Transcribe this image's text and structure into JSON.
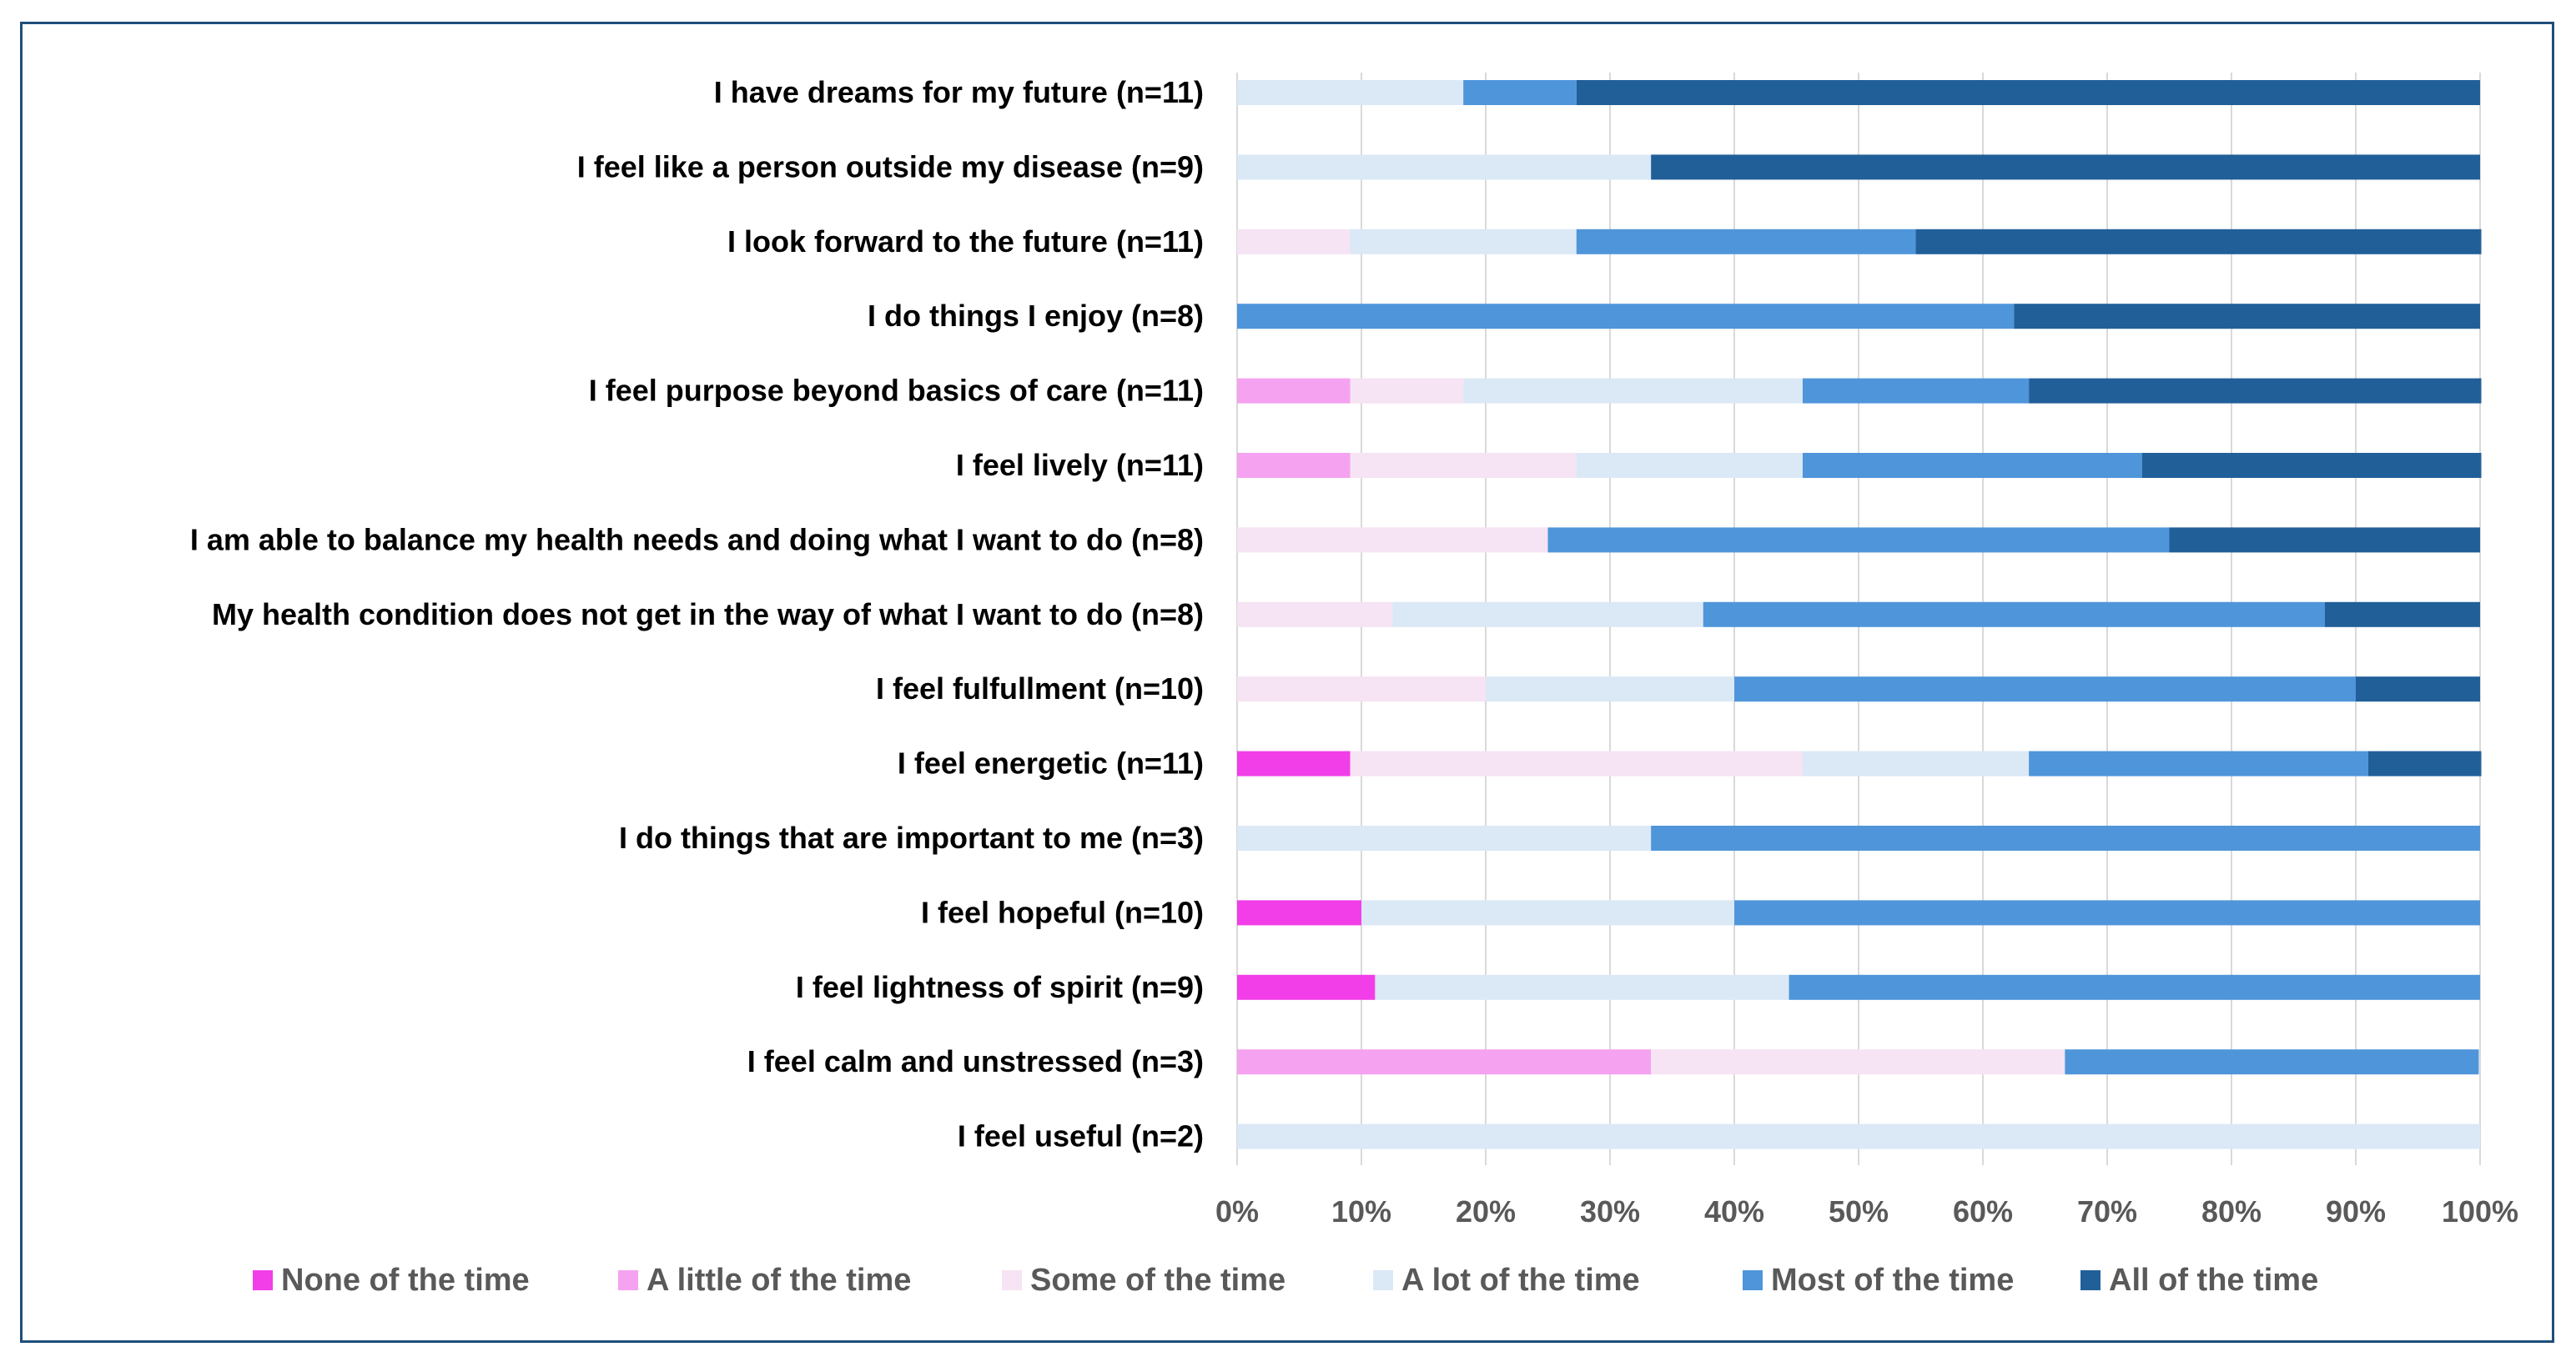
{
  "chart_data": {
    "type": "bar",
    "orientation": "horizontal",
    "stacked": "percent",
    "title": "",
    "xlabel": "",
    "ylabel": "",
    "xlim": [
      0,
      100
    ],
    "x_ticks": [
      "0%",
      "10%",
      "20%",
      "30%",
      "40%",
      "50%",
      "60%",
      "70%",
      "80%",
      "90%",
      "100%"
    ],
    "grid": "vertical",
    "legend_position": "bottom",
    "categories": [
      "I have dreams for my future (n=11)",
      "I feel like a person outside my disease (n=9)",
      "I look forward to the future (n=11)",
      "I do things I enjoy (n=8)",
      "I feel purpose beyond basics of care (n=11)",
      "I feel lively (n=11)",
      "I am able to balance my health needs and doing what I want to do (n=8)",
      "My health condition does not get in the way of what I want to do (n=8)",
      "I feel fulfullment (n=10)",
      "I feel energetic (n=11)",
      "I do things that are important to me (n=3)",
      "I feel hopeful (n=10)",
      "I feel lightness of spirit (n=9)",
      "I feel calm and unstressed (n=3)",
      "I feel useful (n=2)"
    ],
    "series": [
      {
        "name": "None of the time",
        "color": "#f23ee8",
        "values": [
          0,
          0,
          0,
          0,
          0,
          0,
          0,
          0,
          0,
          9.1,
          0,
          10,
          11.1,
          0,
          0
        ]
      },
      {
        "name": "A little of the time",
        "color": "#f5a2f0",
        "values": [
          0,
          0,
          0,
          0,
          9.1,
          9.1,
          0,
          0,
          0,
          0,
          0,
          0,
          0,
          33.3,
          0
        ]
      },
      {
        "name": "Some of the time",
        "color": "#f6e3f3",
        "values": [
          0,
          0,
          9.1,
          0,
          9.1,
          18.2,
          25,
          12.5,
          20,
          36.4,
          0,
          0,
          0,
          33.3,
          0
        ]
      },
      {
        "name": "A lot of the time",
        "color": "#dbe8f6",
        "values": [
          18.2,
          33.3,
          18.2,
          0,
          27.3,
          18.2,
          0,
          25,
          20,
          18.2,
          33.3,
          30,
          33.3,
          0,
          100
        ]
      },
      {
        "name": "Most of the time",
        "color": "#4f95da",
        "values": [
          9.1,
          0,
          27.3,
          62.5,
          18.2,
          27.3,
          50,
          50,
          50,
          27.3,
          66.7,
          60,
          55.6,
          33.3,
          0
        ]
      },
      {
        "name": "All of the time",
        "color": "#215f99",
        "values": [
          72.7,
          66.7,
          45.5,
          37.5,
          36.4,
          27.3,
          25,
          12.5,
          10,
          9.1,
          0,
          0,
          0,
          0,
          0
        ]
      }
    ]
  }
}
